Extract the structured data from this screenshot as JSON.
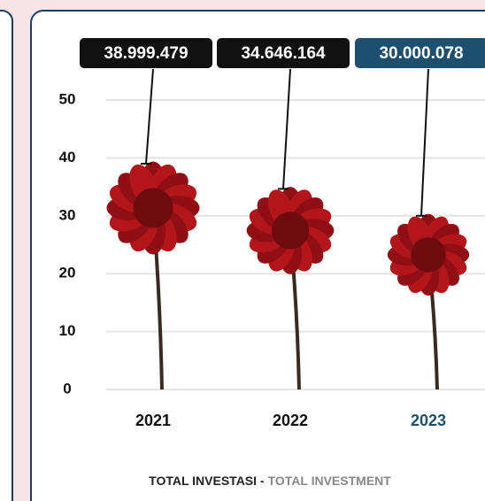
{
  "chart_data": {
    "type": "pictorial-bar",
    "title_parts": [
      "TOTAL INVESTASI -",
      "TOTAL INVESTMENT"
    ],
    "categories": [
      "2021",
      "2022",
      "2023"
    ],
    "values": [
      38.999479,
      34.646164,
      30.000078
    ],
    "value_labels": [
      "38.999.479",
      "34.646.164",
      "30.000.078"
    ],
    "colors": [
      "#111111",
      "#111111",
      "#1d4f6e"
    ],
    "ylim": [
      0,
      50
    ],
    "yticks": [
      0,
      10,
      20,
      30,
      40,
      50
    ],
    "grid": true
  }
}
